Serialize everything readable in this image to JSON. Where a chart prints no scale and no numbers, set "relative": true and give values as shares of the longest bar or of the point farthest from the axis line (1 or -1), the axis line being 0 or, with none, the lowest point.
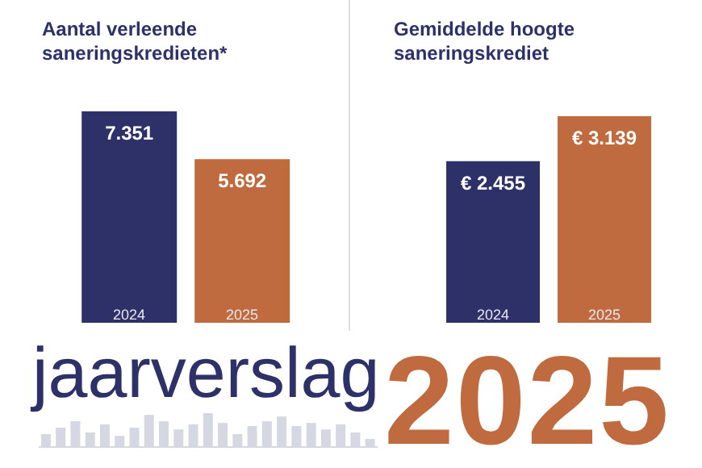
{
  "chart_data": [
    {
      "type": "bar",
      "title": "Aantal verleende saneringskredieten*",
      "categories": [
        "2024",
        "2025"
      ],
      "values": [
        7351,
        5692
      ],
      "colors": [
        "#2d3168",
        "#c06a3f"
      ],
      "value_labels": [
        "7.351",
        "5.692"
      ]
    },
    {
      "type": "bar",
      "title": "Gemiddelde hoogte saneringskrediet",
      "categories": [
        "2024",
        "2025"
      ],
      "values": [
        2455,
        3139
      ],
      "colors": [
        "#2d3168",
        "#c06a3f"
      ],
      "value_labels": [
        "€ 2.455",
        "€ 3.139"
      ]
    },
    {
      "type": "other",
      "annotations": [
        "jaarverslag",
        "2025"
      ]
    },
    {
      "type": "bar",
      "relative": true,
      "categories": [
        null,
        null,
        null,
        null,
        null,
        null,
        null,
        null,
        null,
        null,
        null,
        null,
        null,
        null,
        null,
        null,
        null,
        null,
        null,
        null,
        null,
        null,
        null
      ],
      "values": [
        0.38,
        0.57,
        0.76,
        0.43,
        0.67,
        0.33,
        0.57,
        0.95,
        0.76,
        0.52,
        0.67,
        1,
        0.71,
        0.38,
        0.62,
        0.76,
        0.9,
        0.62,
        0.71,
        0.52,
        0.67,
        0.43,
        0.24
      ],
      "color": "#d5d8e3"
    }
  ]
}
